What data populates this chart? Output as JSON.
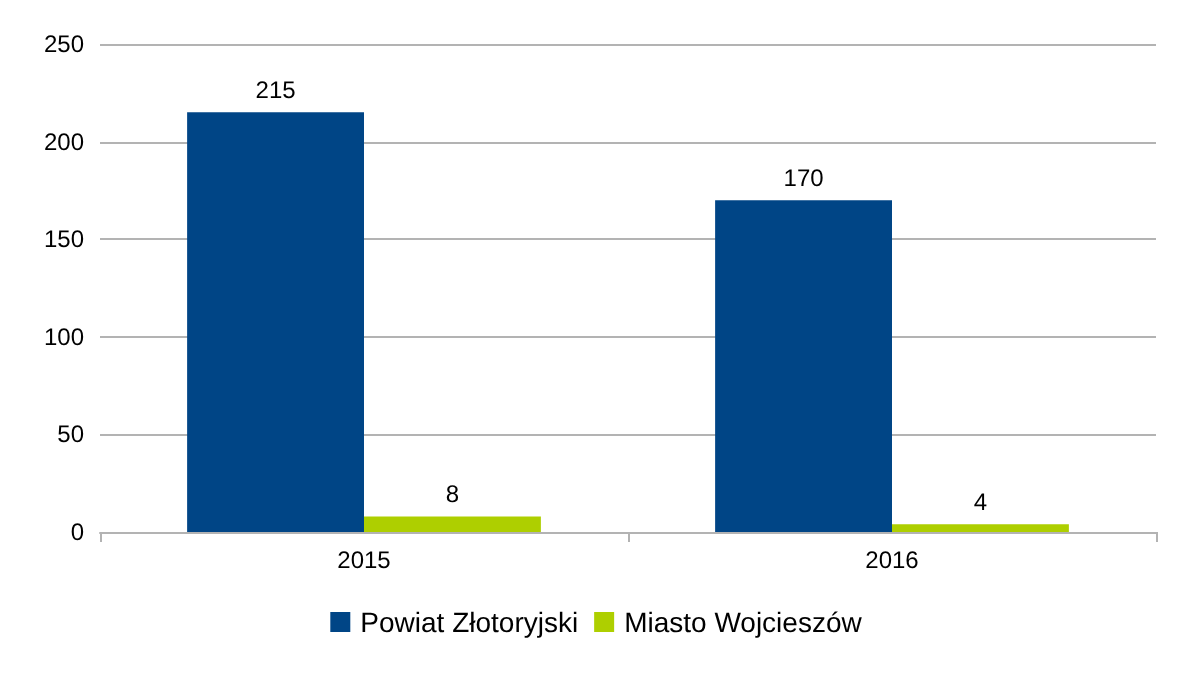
{
  "chart_data": {
    "type": "bar",
    "categories": [
      "2015",
      "2016"
    ],
    "series": [
      {
        "name": "Powiat Złotoryjski",
        "color": "#004586",
        "values": [
          215,
          170
        ]
      },
      {
        "name": "Miasto Wojcieszów",
        "color": "#aecf00",
        "values": [
          8,
          4
        ]
      }
    ],
    "ylim": [
      0,
      250
    ],
    "yticks": [
      0,
      50,
      100,
      150,
      200,
      250
    ],
    "grid": "y",
    "legend": "bottom",
    "data_labels": true
  }
}
